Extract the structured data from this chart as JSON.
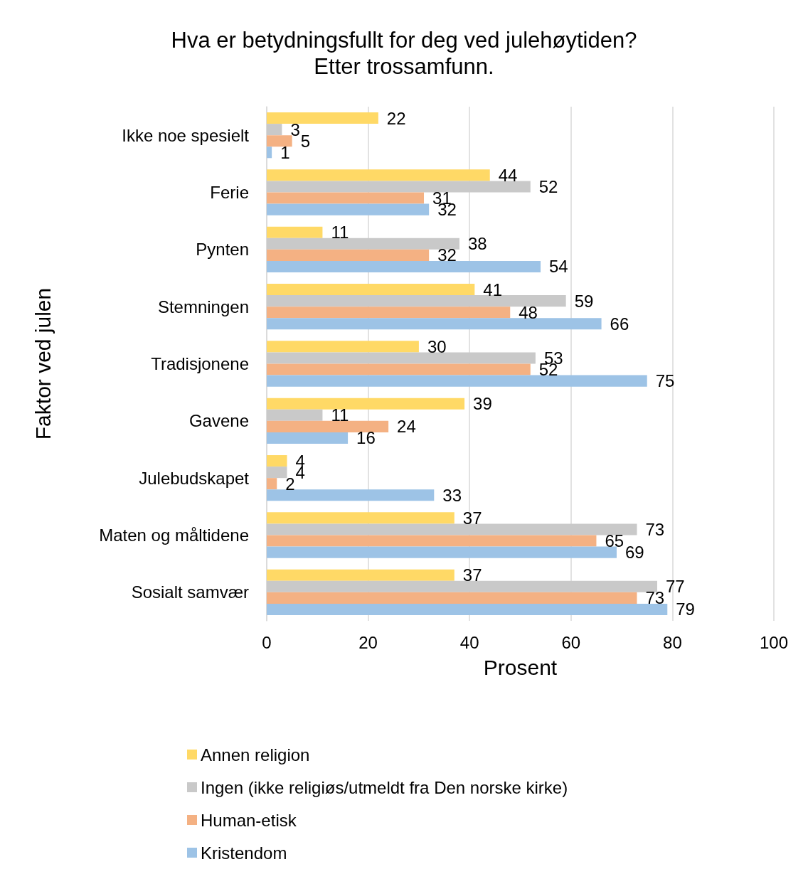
{
  "chart_data": {
    "type": "bar",
    "orientation": "horizontal",
    "title": "Hva er betydningsfullt for deg ved julehøytiden?",
    "subtitle": "Etter trossamfunn.",
    "xlabel": "Prosent",
    "ylabel": "Faktor ved julen",
    "categories": [
      "Ikke noe spesielt",
      "Ferie",
      "Pynten",
      "Stemningen",
      "Tradisjonene",
      "Gavene",
      "Julebudskapet",
      "Maten og måltidene",
      "Sosialt samvær"
    ],
    "series": [
      {
        "name": "Annen religion",
        "color": "#ffd966",
        "values": [
          22,
          44,
          11,
          41,
          30,
          39,
          4,
          37,
          37
        ]
      },
      {
        "name": "Ingen (ikke religiøs/utmeldt fra Den norske kirke)",
        "color": "#c9c9c9",
        "values": [
          3,
          52,
          38,
          59,
          53,
          11,
          4,
          73,
          77
        ]
      },
      {
        "name": "Human-etisk",
        "color": "#f4b183",
        "values": [
          5,
          31,
          32,
          48,
          52,
          24,
          2,
          65,
          73
        ]
      },
      {
        "name": "Kristendom",
        "color": "#9dc3e6",
        "values": [
          1,
          32,
          54,
          66,
          75,
          16,
          33,
          69,
          79
        ]
      }
    ],
    "xlim": [
      0,
      100
    ],
    "xticks": [
      0,
      20,
      40,
      60,
      80,
      100
    ],
    "grid": "x",
    "legend": "bottom",
    "data_labels": true
  }
}
